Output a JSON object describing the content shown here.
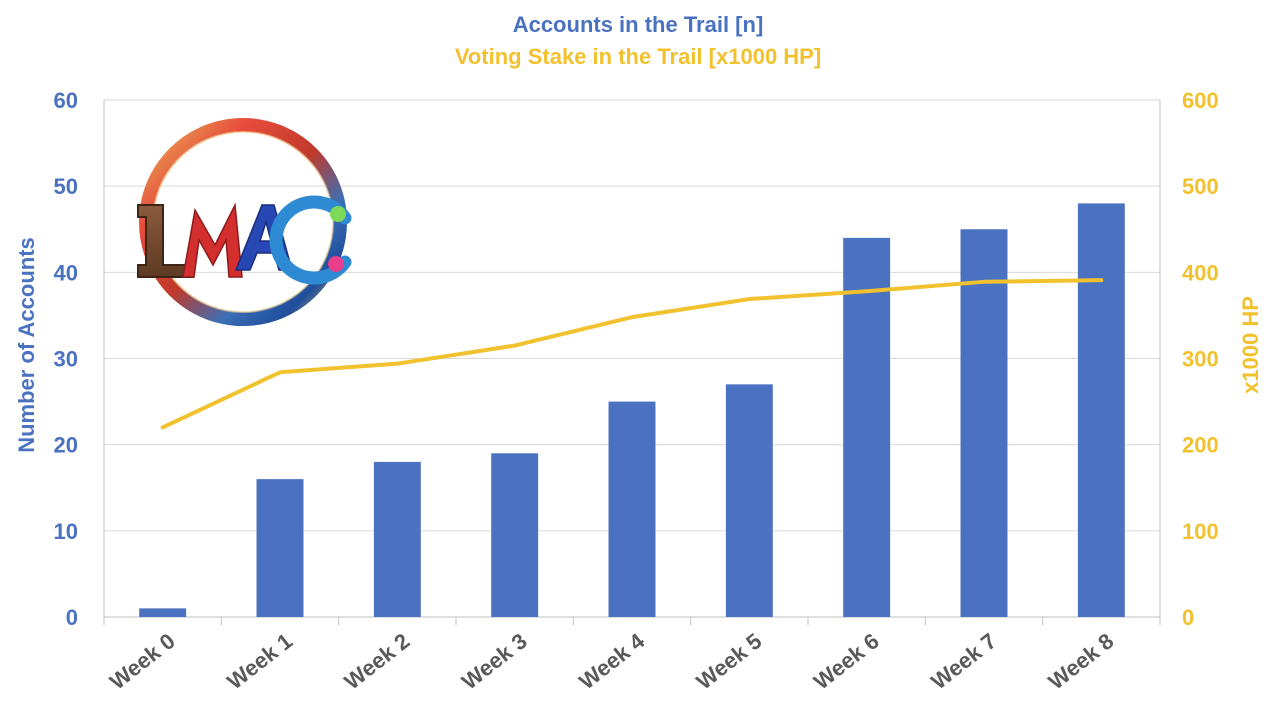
{
  "chart_data": {
    "type": "bar",
    "title": "Accounts in the Trail [n]",
    "subtitle": "Voting Stake in the Trail [x1000 HP]",
    "categories": [
      "Week 0",
      "Week 1",
      "Week 2",
      "Week 3",
      "Week 4",
      "Week 5",
      "Week 6",
      "Week 7",
      "Week 8"
    ],
    "series": [
      {
        "type": "bar",
        "axis": "left",
        "color": "#4A72C0",
        "values": [
          1,
          16,
          18,
          19,
          25,
          27,
          44,
          45,
          48
        ]
      },
      {
        "type": "line",
        "axis": "right",
        "color": "#F2C12E",
        "values": [
          220,
          284,
          294,
          315,
          348,
          369,
          378,
          389,
          391
        ]
      }
    ],
    "ylabel": "Number of Accounts",
    "y2label": "x1000 HP",
    "ylim": [
      0,
      60
    ],
    "y2lim": [
      0,
      600
    ],
    "yticks": [
      "0",
      "10",
      "20",
      "30",
      "40",
      "50",
      "60"
    ],
    "y2ticks": [
      "0",
      "100",
      "200",
      "300",
      "400",
      "500",
      "600"
    ],
    "grid": true,
    "colors": {
      "title": "#4A72C0",
      "subtitle": "#F2C12E",
      "left_axis": "#4A72C0",
      "right_axis": "#F2C12E",
      "category_labels": "#595959",
      "gridline": "#D9D9D9"
    }
  },
  "logo": {
    "text": "LMAC",
    "icon": "lmac-logo"
  }
}
